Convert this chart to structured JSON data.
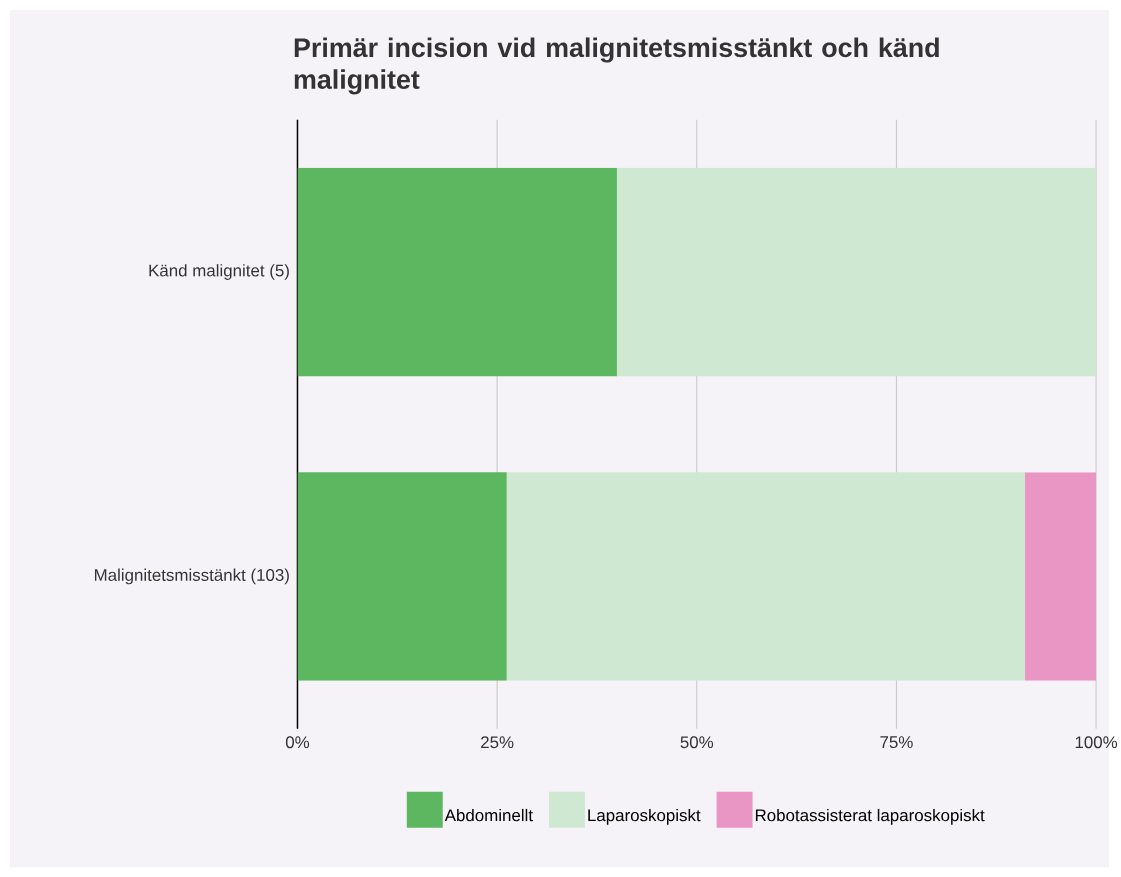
{
  "chart_data": {
    "type": "bar",
    "orientation": "horizontal",
    "stacked": true,
    "title": "Primär incision vid malignitetsmisstänkt och känd malignitet",
    "categories": [
      "Känd malignitet (5)",
      "Malignitetsmisstänkt (103)"
    ],
    "series": [
      {
        "name": "Abdominellt",
        "color": "#5db761",
        "values": [
          40,
          26.2
        ]
      },
      {
        "name": "Laparoskopiskt",
        "color": "#cfe8d2",
        "values": [
          60,
          64.9
        ]
      },
      {
        "name": "Robotassisterat laparoskopiskt",
        "color": "#ea96c4",
        "values": [
          0,
          8.9
        ]
      }
    ],
    "xlim": [
      0,
      100
    ],
    "xticks": [
      {
        "value": 0,
        "label": "0%"
      },
      {
        "value": 25,
        "label": "25%"
      },
      {
        "value": 50,
        "label": "50%"
      },
      {
        "value": 75,
        "label": "75%"
      },
      {
        "value": 100,
        "label": "100%"
      }
    ],
    "grid": "x",
    "legend": "bottom"
  }
}
